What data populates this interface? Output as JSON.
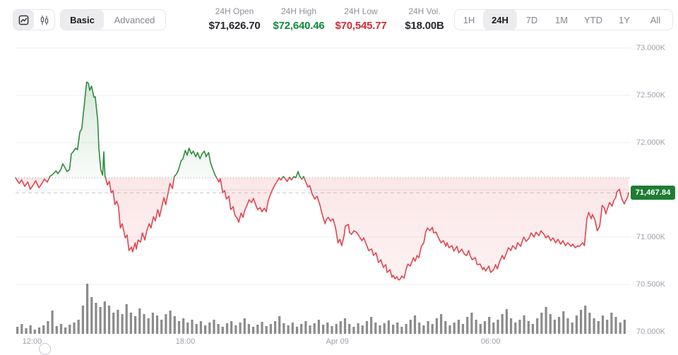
{
  "toolbar": {
    "chart_type": {
      "options": [
        {
          "name": "line-chart",
          "selected": true
        },
        {
          "name": "candlestick-chart",
          "selected": false
        }
      ]
    },
    "mode": {
      "options": [
        {
          "label": "Basic",
          "selected": true
        },
        {
          "label": "Advanced",
          "selected": false
        }
      ]
    },
    "stats": [
      {
        "label": "24H Open",
        "value": "$71,626.70",
        "color": "#26292e"
      },
      {
        "label": "24H High",
        "value": "$72,640.46",
        "color": "#0f8a3d"
      },
      {
        "label": "24H Low",
        "value": "$70,545.77",
        "color": "#d42b3a"
      },
      {
        "label": "24H Vol.",
        "value": "$18.00B",
        "color": "#26292e"
      }
    ],
    "ranges": {
      "options": [
        "1H",
        "24H",
        "7D",
        "1M",
        "YTD",
        "1Y",
        "All"
      ],
      "selected": "24H"
    }
  },
  "colors": {
    "up": "#2e8b3d",
    "down": "#e0454e",
    "badge_bg": "#1e7d33",
    "grid": "#ededf0",
    "axis_text": "#9ba1ab",
    "open_line": "#9aa0a6",
    "current_line": "#c2c6cd",
    "volume": "#7b7b7b"
  },
  "chart_data": {
    "type": "area",
    "legend": "none",
    "grid": true,
    "y_axis": {
      "range": [
        70000,
        73000
      ],
      "gridline_values": [
        73000,
        72500,
        72000,
        71500,
        71000,
        70500,
        70000
      ],
      "labels": [
        {
          "value": 73000,
          "label": "73.000K"
        },
        {
          "value": 72500,
          "label": "72.500K"
        },
        {
          "value": 72000,
          "label": "72.000K"
        },
        {
          "value": 71000,
          "label": "71.000K"
        },
        {
          "value": 70500,
          "label": "70.500K"
        },
        {
          "value": 70000,
          "label": "70.000K"
        }
      ]
    },
    "x_axis": {
      "ticks": [
        {
          "label": "12:00",
          "t": 0.027
        },
        {
          "label": "18:00",
          "t": 0.277
        },
        {
          "label": "Apr 09",
          "t": 0.525
        },
        {
          "label": "06:00",
          "t": 0.775
        }
      ]
    },
    "open_price": 71626.7,
    "high_price": 72640.46,
    "low_price": 70545.77,
    "current_price": 71467.84,
    "current_price_label": "71,467.84",
    "price_series": [
      [
        0.0,
        71627
      ],
      [
        0.006,
        71567
      ],
      [
        0.01,
        71604
      ],
      [
        0.015,
        71537
      ],
      [
        0.02,
        71582
      ],
      [
        0.024,
        71507
      ],
      [
        0.029,
        71552
      ],
      [
        0.033,
        71597
      ],
      [
        0.038,
        71522
      ],
      [
        0.043,
        71567
      ],
      [
        0.047,
        71612
      ],
      [
        0.052,
        71582
      ],
      [
        0.056,
        71642
      ],
      [
        0.061,
        71664
      ],
      [
        0.066,
        71701
      ],
      [
        0.069,
        71671
      ],
      [
        0.074,
        71716
      ],
      [
        0.077,
        71776
      ],
      [
        0.081,
        71731
      ],
      [
        0.084,
        71694
      ],
      [
        0.088,
        71716
      ],
      [
        0.091,
        71880
      ],
      [
        0.094,
        71903
      ],
      [
        0.098,
        71940
      ],
      [
        0.101,
        71925
      ],
      [
        0.105,
        72112
      ],
      [
        0.108,
        72141
      ],
      [
        0.112,
        72388
      ],
      [
        0.116,
        72640
      ],
      [
        0.119,
        72626
      ],
      [
        0.121,
        72552
      ],
      [
        0.124,
        72597
      ],
      [
        0.128,
        72478
      ],
      [
        0.13,
        72485
      ],
      [
        0.134,
        72239
      ],
      [
        0.136,
        71940
      ],
      [
        0.139,
        71716
      ],
      [
        0.142,
        71656
      ],
      [
        0.144,
        71903
      ],
      [
        0.146,
        71642
      ],
      [
        0.15,
        71552
      ],
      [
        0.153,
        71589
      ],
      [
        0.156,
        71470
      ],
      [
        0.159,
        71492
      ],
      [
        0.162,
        71343
      ],
      [
        0.165,
        71380
      ],
      [
        0.168,
        71321
      ],
      [
        0.171,
        71097
      ],
      [
        0.174,
        71142
      ],
      [
        0.179,
        70992
      ],
      [
        0.182,
        71022
      ],
      [
        0.185,
        70858
      ],
      [
        0.189,
        70895
      ],
      [
        0.191,
        70843
      ],
      [
        0.195,
        70940
      ],
      [
        0.197,
        70873
      ],
      [
        0.2,
        70970
      ],
      [
        0.204,
        70948
      ],
      [
        0.207,
        71045
      ],
      [
        0.211,
        70970
      ],
      [
        0.214,
        71067
      ],
      [
        0.218,
        71142
      ],
      [
        0.221,
        71097
      ],
      [
        0.225,
        71216
      ],
      [
        0.228,
        71171
      ],
      [
        0.232,
        71291
      ],
      [
        0.235,
        71216
      ],
      [
        0.238,
        71306
      ],
      [
        0.242,
        71418
      ],
      [
        0.245,
        71343
      ],
      [
        0.249,
        71470
      ],
      [
        0.252,
        71567
      ],
      [
        0.256,
        71515
      ],
      [
        0.259,
        71642
      ],
      [
        0.263,
        71671
      ],
      [
        0.266,
        71716
      ],
      [
        0.27,
        71806
      ],
      [
        0.273,
        71828
      ],
      [
        0.277,
        71918
      ],
      [
        0.28,
        71866
      ],
      [
        0.283,
        71940
      ],
      [
        0.287,
        71880
      ],
      [
        0.29,
        71910
      ],
      [
        0.294,
        71851
      ],
      [
        0.297,
        71895
      ],
      [
        0.301,
        71828
      ],
      [
        0.304,
        71880
      ],
      [
        0.308,
        71910
      ],
      [
        0.311,
        71851
      ],
      [
        0.315,
        71895
      ],
      [
        0.318,
        71791
      ],
      [
        0.321,
        71731
      ],
      [
        0.325,
        71664
      ],
      [
        0.328,
        71627
      ],
      [
        0.332,
        71582
      ],
      [
        0.334,
        71619
      ],
      [
        0.338,
        71470
      ],
      [
        0.341,
        71492
      ],
      [
        0.344,
        71403
      ],
      [
        0.348,
        71433
      ],
      [
        0.351,
        71291
      ],
      [
        0.355,
        71321
      ],
      [
        0.358,
        71231
      ],
      [
        0.362,
        71194
      ],
      [
        0.364,
        71157
      ],
      [
        0.368,
        71254
      ],
      [
        0.371,
        71209
      ],
      [
        0.374,
        71284
      ],
      [
        0.378,
        71343
      ],
      [
        0.381,
        71395
      ],
      [
        0.385,
        71366
      ],
      [
        0.388,
        71410
      ],
      [
        0.392,
        71336
      ],
      [
        0.395,
        71291
      ],
      [
        0.399,
        71313
      ],
      [
        0.402,
        71269
      ],
      [
        0.406,
        71306
      ],
      [
        0.409,
        71269
      ],
      [
        0.412,
        71380
      ],
      [
        0.416,
        71455
      ],
      [
        0.419,
        71500
      ],
      [
        0.423,
        71552
      ],
      [
        0.426,
        71582
      ],
      [
        0.43,
        71627
      ],
      [
        0.433,
        71604
      ],
      [
        0.437,
        71642
      ],
      [
        0.44,
        71619
      ],
      [
        0.443,
        71589
      ],
      [
        0.447,
        71634
      ],
      [
        0.45,
        71604
      ],
      [
        0.454,
        71642
      ],
      [
        0.457,
        71627
      ],
      [
        0.461,
        71694
      ],
      [
        0.463,
        71649
      ],
      [
        0.467,
        71612
      ],
      [
        0.47,
        71642
      ],
      [
        0.473,
        71589
      ],
      [
        0.477,
        71530
      ],
      [
        0.48,
        71545
      ],
      [
        0.484,
        71455
      ],
      [
        0.488,
        71403
      ],
      [
        0.492,
        71433
      ],
      [
        0.497,
        71328
      ],
      [
        0.5,
        71246
      ],
      [
        0.505,
        71142
      ],
      [
        0.507,
        71186
      ],
      [
        0.51,
        71209
      ],
      [
        0.514,
        71171
      ],
      [
        0.518,
        71194
      ],
      [
        0.522,
        71097
      ],
      [
        0.526,
        70940
      ],
      [
        0.529,
        70977
      ],
      [
        0.532,
        70910
      ],
      [
        0.536,
        71015
      ],
      [
        0.538,
        71119
      ],
      [
        0.543,
        71134
      ],
      [
        0.545,
        71045
      ],
      [
        0.548,
        71030
      ],
      [
        0.552,
        71067
      ],
      [
        0.556,
        71052
      ],
      [
        0.56,
        71015
      ],
      [
        0.565,
        70963
      ],
      [
        0.568,
        70992
      ],
      [
        0.573,
        70910
      ],
      [
        0.576,
        70858
      ],
      [
        0.581,
        70873
      ],
      [
        0.584,
        70806
      ],
      [
        0.588,
        70836
      ],
      [
        0.592,
        70731
      ],
      [
        0.596,
        70761
      ],
      [
        0.6,
        70679
      ],
      [
        0.604,
        70709
      ],
      [
        0.606,
        70627
      ],
      [
        0.611,
        70656
      ],
      [
        0.614,
        70574
      ],
      [
        0.616,
        70597
      ],
      [
        0.619,
        70560
      ],
      [
        0.622,
        70582
      ],
      [
        0.625,
        70546
      ],
      [
        0.628,
        70560
      ],
      [
        0.63,
        70589
      ],
      [
        0.634,
        70567
      ],
      [
        0.637,
        70656
      ],
      [
        0.64,
        70716
      ],
      [
        0.644,
        70694
      ],
      [
        0.649,
        70783
      ],
      [
        0.652,
        70746
      ],
      [
        0.655,
        70806
      ],
      [
        0.658,
        70783
      ],
      [
        0.662,
        70903
      ],
      [
        0.666,
        70940
      ],
      [
        0.669,
        71052
      ],
      [
        0.672,
        71097
      ],
      [
        0.676,
        71067
      ],
      [
        0.68,
        71104
      ],
      [
        0.682,
        71045
      ],
      [
        0.686,
        71052
      ],
      [
        0.69,
        70992
      ],
      [
        0.694,
        70940
      ],
      [
        0.698,
        70963
      ],
      [
        0.702,
        70903
      ],
      [
        0.704,
        70940
      ],
      [
        0.707,
        70888
      ],
      [
        0.712,
        70910
      ],
      [
        0.715,
        70851
      ],
      [
        0.72,
        70903
      ],
      [
        0.723,
        70836
      ],
      [
        0.728,
        70873
      ],
      [
        0.732,
        70821
      ],
      [
        0.736,
        70806
      ],
      [
        0.739,
        70858
      ],
      [
        0.742,
        70798
      ],
      [
        0.745,
        70761
      ],
      [
        0.75,
        70783
      ],
      [
        0.753,
        70709
      ],
      [
        0.758,
        70716
      ],
      [
        0.762,
        70656
      ],
      [
        0.764,
        70679
      ],
      [
        0.767,
        70642
      ],
      [
        0.772,
        70694
      ],
      [
        0.775,
        70627
      ],
      [
        0.78,
        70656
      ],
      [
        0.783,
        70709
      ],
      [
        0.786,
        70664
      ],
      [
        0.789,
        70731
      ],
      [
        0.794,
        70806
      ],
      [
        0.797,
        70768
      ],
      [
        0.802,
        70851
      ],
      [
        0.804,
        70888
      ],
      [
        0.808,
        70858
      ],
      [
        0.811,
        70910
      ],
      [
        0.816,
        70873
      ],
      [
        0.819,
        70940
      ],
      [
        0.824,
        70903
      ],
      [
        0.827,
        70963
      ],
      [
        0.829,
        71000
      ],
      [
        0.833,
        70955
      ],
      [
        0.838,
        70992
      ],
      [
        0.841,
        71045
      ],
      [
        0.846,
        71000
      ],
      [
        0.849,
        71052
      ],
      [
        0.854,
        71015
      ],
      [
        0.857,
        71067
      ],
      [
        0.862,
        71030
      ],
      [
        0.865,
        70992
      ],
      [
        0.869,
        71015
      ],
      [
        0.873,
        70963
      ],
      [
        0.877,
        70992
      ],
      [
        0.881,
        70940
      ],
      [
        0.885,
        70977
      ],
      [
        0.889,
        70925
      ],
      [
        0.893,
        70963
      ],
      [
        0.897,
        70910
      ],
      [
        0.901,
        70940
      ],
      [
        0.906,
        70903
      ],
      [
        0.909,
        70925
      ],
      [
        0.913,
        70888
      ],
      [
        0.917,
        70910
      ],
      [
        0.92,
        70903
      ],
      [
        0.925,
        70940
      ],
      [
        0.928,
        70910
      ],
      [
        0.932,
        71194
      ],
      [
        0.935,
        71261
      ],
      [
        0.939,
        71194
      ],
      [
        0.941,
        71239
      ],
      [
        0.945,
        71186
      ],
      [
        0.949,
        71067
      ],
      [
        0.953,
        71119
      ],
      [
        0.957,
        71336
      ],
      [
        0.96,
        71313
      ],
      [
        0.963,
        71246
      ],
      [
        0.965,
        71291
      ],
      [
        0.969,
        71366
      ],
      [
        0.973,
        71328
      ],
      [
        0.976,
        71388
      ],
      [
        0.979,
        71418
      ],
      [
        0.981,
        71478
      ],
      [
        0.985,
        71507
      ],
      [
        0.987,
        71455
      ],
      [
        0.989,
        71403
      ],
      [
        0.993,
        71351
      ],
      [
        0.995,
        71380
      ],
      [
        0.999,
        71433
      ],
      [
        1.0,
        71468
      ]
    ],
    "volume_bars": [
      10,
      14,
      8,
      12,
      6,
      9,
      12,
      18,
      33,
      11,
      14,
      9,
      13,
      16,
      20,
      40,
      71,
      52,
      44,
      38,
      46,
      40,
      30,
      34,
      28,
      42,
      30,
      25,
      36,
      28,
      22,
      30,
      26,
      20,
      28,
      33,
      25,
      18,
      22,
      16,
      20,
      14,
      18,
      12,
      16,
      20,
      14,
      10,
      15,
      18,
      12,
      16,
      22,
      14,
      10,
      13,
      17,
      11,
      14,
      18,
      25,
      15,
      12,
      16,
      10,
      14,
      18,
      12,
      15,
      20,
      13,
      16,
      11,
      14,
      18,
      22,
      14,
      10,
      15,
      12,
      18,
      24,
      16,
      12,
      15,
      19,
      13,
      16,
      10,
      14,
      20,
      26,
      16,
      12,
      18,
      14,
      22,
      28,
      18,
      12,
      16,
      20,
      14,
      24,
      30,
      20,
      14,
      18,
      24,
      16,
      20,
      28,
      35,
      22,
      16,
      20,
      26,
      18,
      14,
      22,
      30,
      38,
      28,
      20,
      24,
      32,
      22,
      16,
      26,
      34,
      40,
      30,
      22,
      18,
      26,
      20,
      30,
      24,
      16,
      20
    ]
  }
}
